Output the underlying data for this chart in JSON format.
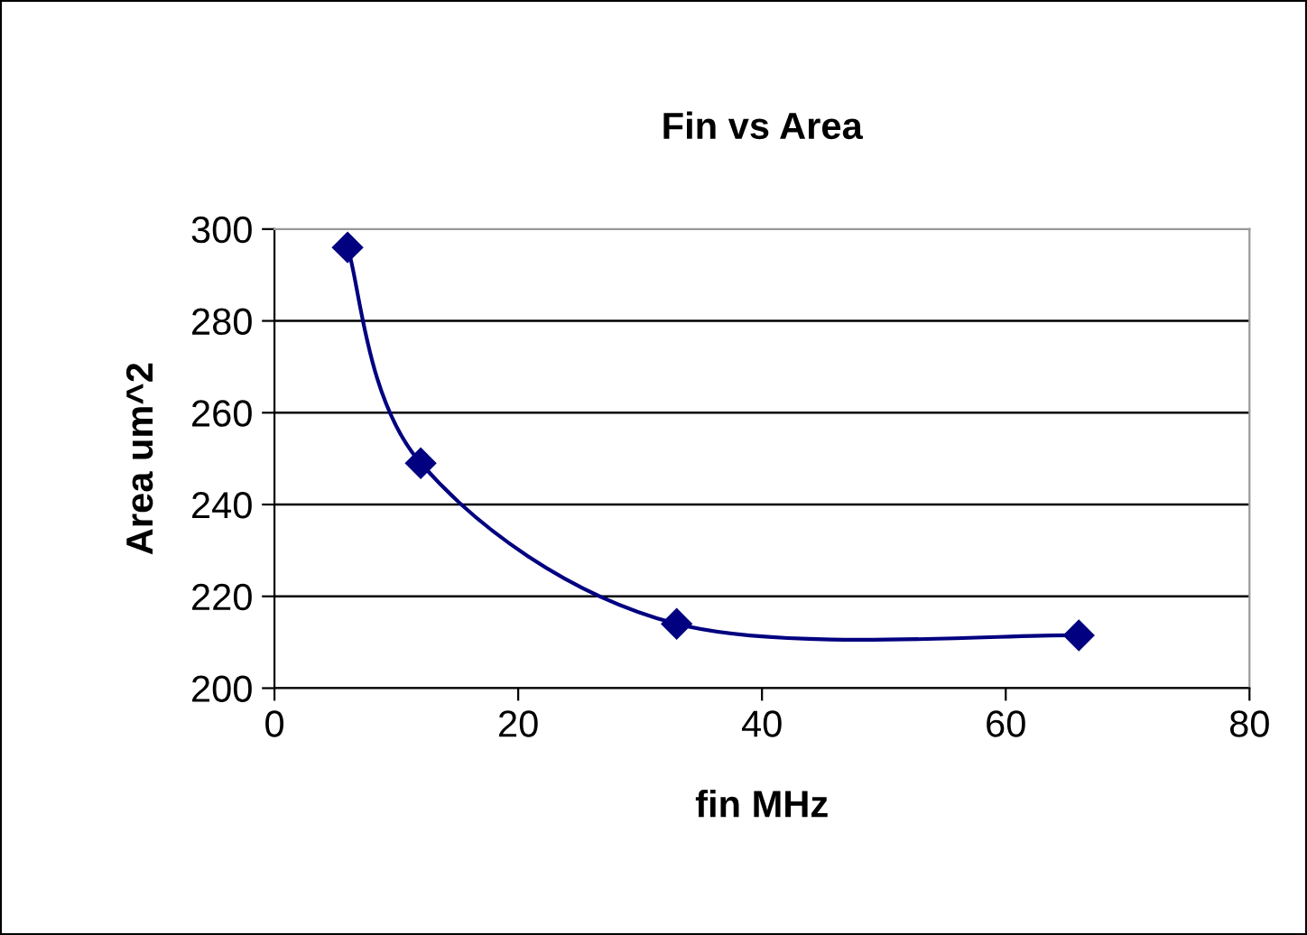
{
  "chart_data": {
    "type": "line",
    "title": "Fin vs Area",
    "xlabel": "fin MHz",
    "ylabel": "Area um^2",
    "x": [
      6,
      12,
      33,
      66
    ],
    "series": [
      {
        "color": "#000080",
        "values": [
          296,
          249,
          214,
          211.5
        ]
      }
    ],
    "xlim": [
      0,
      80
    ],
    "xticks": [
      0,
      20,
      40,
      60,
      80
    ],
    "ylim": [
      200,
      300
    ],
    "yticks": [
      200,
      220,
      240,
      260,
      280,
      300
    ],
    "grid": "y",
    "marker": "diamond",
    "line_style": "solid",
    "legend": false
  }
}
